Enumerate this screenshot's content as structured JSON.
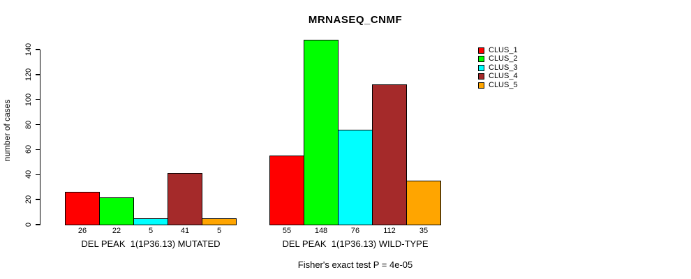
{
  "chart_data": {
    "type": "bar",
    "title": "MRNASEQ_CNMF",
    "ylabel": "number of cases",
    "xlabel": "",
    "ylim": [
      0,
      140
    ],
    "yticks": [
      0,
      20,
      40,
      60,
      80,
      100,
      120,
      140
    ],
    "grid": false,
    "legend_position": "right",
    "bar_value_labels_shown": true,
    "categories": [
      "DEL PEAK  1(1P36.13) MUTATED",
      "DEL PEAK  1(1P36.13) WILD-TYPE"
    ],
    "series": [
      {
        "name": "CLUS_1",
        "color": "#FF0000",
        "values": [
          26,
          55
        ]
      },
      {
        "name": "CLUS_2",
        "color": "#00FF00",
        "values": [
          22,
          148
        ]
      },
      {
        "name": "CLUS_3",
        "color": "#00FFFF",
        "values": [
          5,
          76
        ]
      },
      {
        "name": "CLUS_4",
        "color": "#A52A2A",
        "values": [
          41,
          112
        ]
      },
      {
        "name": "CLUS_5",
        "color": "#FFA500",
        "values": [
          5,
          35
        ]
      }
    ],
    "annotation": "Fisher's exact test P = 4e-05"
  }
}
